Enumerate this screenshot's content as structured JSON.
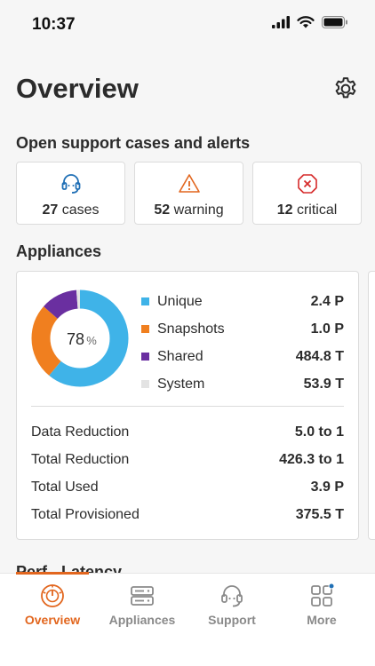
{
  "status": {
    "time": "10:37"
  },
  "header": {
    "title": "Overview"
  },
  "alerts": {
    "section_title": "Open support cases and alerts",
    "cases": {
      "count": "27",
      "label": "cases",
      "icon": "headset-icon"
    },
    "warning": {
      "count": "52",
      "label": "warning",
      "icon": "warning-triangle-icon"
    },
    "critical": {
      "count": "12",
      "label": "critical",
      "icon": "critical-octagon-icon"
    }
  },
  "appliances": {
    "section_title": "Appliances",
    "donut_percent": "78",
    "donut_unit": "%",
    "legend": [
      {
        "name": "Unique",
        "value": "2.4 P",
        "color": "#3fb3e8"
      },
      {
        "name": "Snapshots",
        "value": "1.0 P",
        "color": "#f07f1f"
      },
      {
        "name": "Shared",
        "value": "484.8 T",
        "color": "#6a2fa0"
      },
      {
        "name": "System",
        "value": "53.9 T",
        "color": "#e3e3e3"
      }
    ],
    "stats": [
      {
        "name": "Data Reduction",
        "value": "5.0 to 1"
      },
      {
        "name": "Total Reduction",
        "value": "426.3 to 1"
      },
      {
        "name": "Total Used",
        "value": "3.9 P"
      },
      {
        "name": "Total Provisioned",
        "value": "375.5 T"
      }
    ]
  },
  "perf": {
    "section_title": "Perf - Latency"
  },
  "tabs": [
    {
      "label": "Overview",
      "icon": "gauge-icon",
      "active": true
    },
    {
      "label": "Appliances",
      "icon": "server-icon",
      "active": false
    },
    {
      "label": "Support",
      "icon": "headset-icon",
      "active": false
    },
    {
      "label": "More",
      "icon": "grid-icon",
      "active": false
    }
  ],
  "colors": {
    "accent": "#e2661e",
    "inactive_tab": "#8a8a8a",
    "warning": "#e2661e",
    "critical": "#d62b2b",
    "info": "#1f6fb5"
  }
}
